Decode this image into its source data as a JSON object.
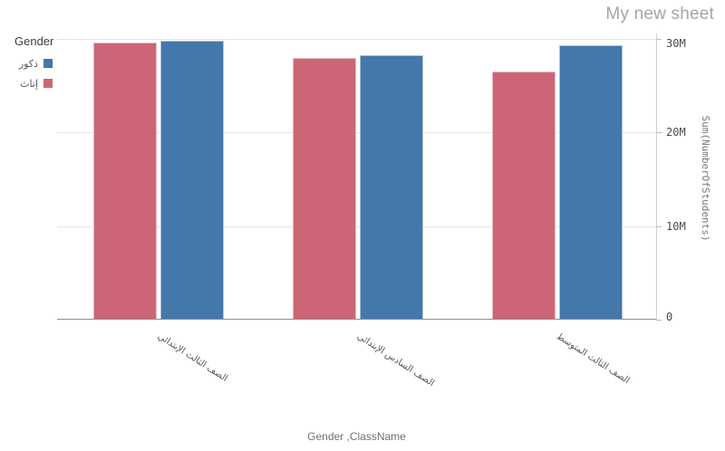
{
  "header": {
    "title": "My new sheet"
  },
  "legend": {
    "title": "Gender",
    "items": [
      {
        "label": "ذكور",
        "color": "#4477aa"
      },
      {
        "label": "إناث",
        "color": "#cc6677"
      }
    ]
  },
  "chart_data": {
    "type": "bar",
    "title": "My new sheet",
    "categories": [
      "الصف الثالث الإبتدائي",
      "الصف السادس الإبتدائي",
      "الصف الثالث المتوسط"
    ],
    "series": [
      {
        "name": "إناث",
        "color": "#cc6677",
        "values": [
          29.6,
          28.0,
          26.5
        ]
      },
      {
        "name": "ذكور",
        "color": "#4477aa",
        "values": [
          29.8,
          28.3,
          29.3
        ]
      }
    ],
    "unit": "millions",
    "xlabel": "Gender ,ClassName",
    "ylabel": "Sum(NumberOfStudents)",
    "ylim": [
      0,
      30
    ],
    "yticks": [
      {
        "label": "0",
        "value": 0
      },
      {
        "label": "10M",
        "value": 10
      },
      {
        "label": "20M",
        "value": 20
      },
      {
        "label": "30M",
        "value": 30
      }
    ],
    "grid": true,
    "legend_title": "Gender",
    "legend_position": "top-left"
  }
}
